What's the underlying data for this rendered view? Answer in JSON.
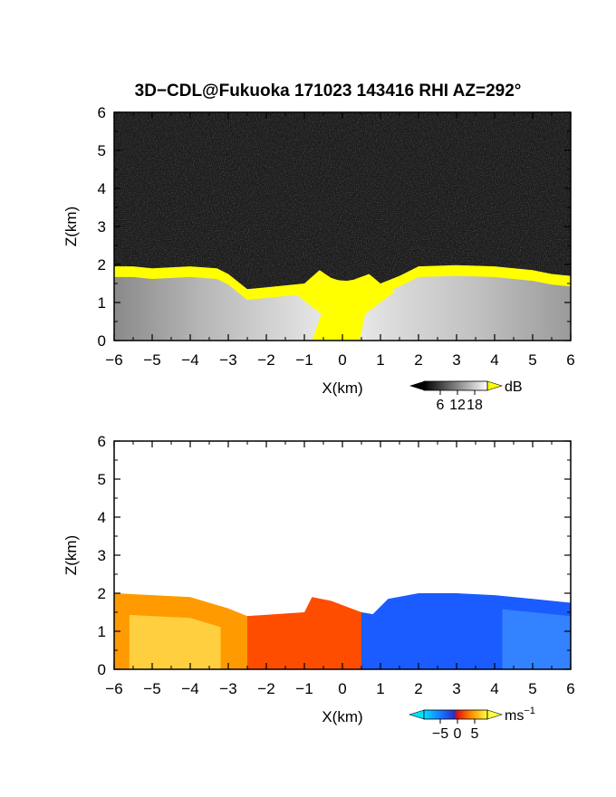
{
  "chart_data": [
    {
      "type": "heatmap",
      "title": "3D−CDL@Fukuoka 171023 143416 RHI AZ=292°",
      "quantity": "backscatter intensity",
      "xlabel": "X(km)",
      "ylabel": "Z(km)",
      "xlim": [
        -6,
        6
      ],
      "ylim": [
        0,
        6
      ],
      "xticks": [
        "−6",
        "−5",
        "−4",
        "−3",
        "−2",
        "−1",
        "0",
        "1",
        "2",
        "3",
        "4",
        "5",
        "6"
      ],
      "yticks": [
        "0",
        "1",
        "2",
        "3",
        "4",
        "5",
        "6"
      ],
      "colorbar": {
        "label": "dB",
        "ticks": [
          "6",
          "12",
          "18"
        ],
        "colormap": "grayscale, yellow above max",
        "colors": [
          "#000000",
          "#ffffff",
          "#ffff00"
        ]
      },
      "layer_top_km": [
        [
          -6.0,
          1.95
        ],
        [
          -5.5,
          1.95
        ],
        [
          -5.0,
          1.9
        ],
        [
          -4.0,
          1.95
        ],
        [
          -3.3,
          1.9
        ],
        [
          -3.0,
          1.75
        ],
        [
          -2.5,
          1.35
        ],
        [
          -2.0,
          1.4
        ],
        [
          -1.0,
          1.5
        ],
        [
          -0.6,
          1.85
        ],
        [
          -0.3,
          1.65
        ],
        [
          0.0,
          1.55
        ],
        [
          0.3,
          1.6
        ],
        [
          0.7,
          1.75
        ],
        [
          1.0,
          1.5
        ],
        [
          1.5,
          1.7
        ],
        [
          2.0,
          1.95
        ],
        [
          3.0,
          1.98
        ],
        [
          4.0,
          1.95
        ],
        [
          5.0,
          1.85
        ],
        [
          5.5,
          1.75
        ],
        [
          6.0,
          1.7
        ]
      ],
      "saturated_regions": [
        {
          "x_range": [
            -6,
            -3
          ],
          "z_range": [
            1.7,
            2.0
          ],
          "level": "≥18 dB"
        },
        {
          "x_range": [
            -0.8,
            0.8
          ],
          "z_range": [
            0.0,
            1.6
          ],
          "level": "≥18 dB"
        },
        {
          "x_range": [
            1.5,
            5.5
          ],
          "z_range": [
            1.7,
            2.0
          ],
          "level": "≥18 dB"
        }
      ],
      "grid": false
    },
    {
      "type": "heatmap",
      "quantity": "radial velocity",
      "xlabel": "X(km)",
      "ylabel": "Z(km)",
      "xlim": [
        -6,
        6
      ],
      "ylim": [
        0,
        6
      ],
      "xticks": [
        "−6",
        "−5",
        "−4",
        "−3",
        "−2",
        "−1",
        "0",
        "1",
        "2",
        "3",
        "4",
        "5",
        "6"
      ],
      "yticks": [
        "0",
        "1",
        "2",
        "3",
        "4",
        "5",
        "6"
      ],
      "colorbar": {
        "label": "ms",
        "label_exponent": "−1",
        "ticks": [
          "−5",
          "0",
          "5"
        ],
        "range": [
          -6,
          6
        ],
        "colors": [
          "#00e0ff",
          "#0050ff",
          "#ff2000",
          "#ff9000",
          "#ffff40"
        ]
      },
      "layer_top_km": [
        [
          -6.0,
          2.0
        ],
        [
          -5.0,
          1.95
        ],
        [
          -4.0,
          1.9
        ],
        [
          -3.0,
          1.6
        ],
        [
          -2.5,
          1.4
        ],
        [
          -1.0,
          1.5
        ],
        [
          -0.8,
          1.9
        ],
        [
          -0.3,
          1.8
        ],
        [
          0.5,
          1.5
        ],
        [
          0.8,
          1.45
        ],
        [
          1.2,
          1.85
        ],
        [
          2.0,
          2.0
        ],
        [
          3.0,
          2.0
        ],
        [
          4.0,
          1.95
        ],
        [
          5.0,
          1.85
        ],
        [
          6.0,
          1.75
        ]
      ],
      "velocity_regions": [
        {
          "x_range": [
            -6,
            -2.5
          ],
          "value_ms": 4,
          "note": "orange/yellow, positive"
        },
        {
          "x_range": [
            -2.5,
            0.5
          ],
          "value_ms": 1,
          "note": "red-orange, weakly positive"
        },
        {
          "x_range": [
            0.5,
            6
          ],
          "value_ms": -4,
          "note": "blue, negative"
        }
      ],
      "grid": false
    }
  ]
}
